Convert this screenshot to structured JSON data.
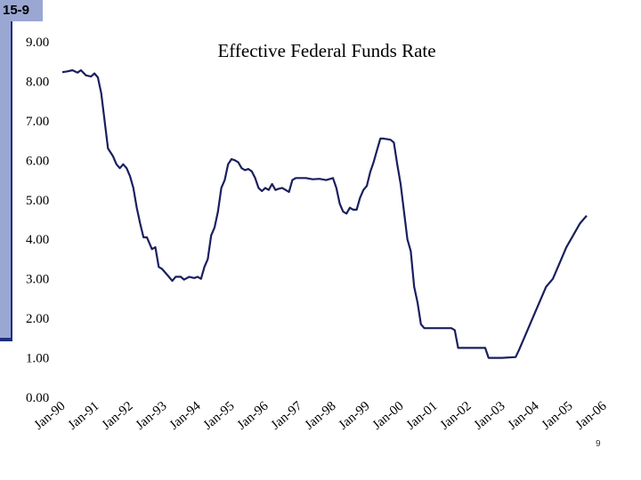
{
  "slide": {
    "tag": "15-9",
    "page_number": "9"
  },
  "colors": {
    "line": "#1a1f5e",
    "accent": "#9aa7d3",
    "accent_dark": "#1f2f7a"
  },
  "chart_data": {
    "type": "line",
    "title": "Effective Federal Funds Rate",
    "xlabel": "",
    "ylabel": "",
    "ylim": [
      0,
      9
    ],
    "y_ticks": [
      "0.00",
      "1.00",
      "2.00",
      "3.00",
      "4.00",
      "5.00",
      "6.00",
      "7.00",
      "8.00",
      "9.00"
    ],
    "x_ticks": [
      "Jan-90",
      "Jan-91",
      "Jan-92",
      "Jan-93",
      "Jan-94",
      "Jan-95",
      "Jan-96",
      "Jan-97",
      "Jan-98",
      "Jan-99",
      "Jan-00",
      "Jan-01",
      "Jan-02",
      "Jan-03",
      "Jan-04",
      "Jan-05",
      "Jan-06"
    ],
    "x_unit": "years since Jan-90",
    "xlim": [
      0,
      16.5
    ],
    "series": [
      {
        "name": "",
        "points": [
          [
            0.0,
            8.23
          ],
          [
            0.15,
            8.25
          ],
          [
            0.3,
            8.28
          ],
          [
            0.45,
            8.22
          ],
          [
            0.55,
            8.28
          ],
          [
            0.7,
            8.15
          ],
          [
            0.85,
            8.12
          ],
          [
            0.95,
            8.2
          ],
          [
            1.05,
            8.1
          ],
          [
            1.15,
            7.7
          ],
          [
            1.25,
            7.0
          ],
          [
            1.35,
            6.3
          ],
          [
            1.5,
            6.1
          ],
          [
            1.6,
            5.9
          ],
          [
            1.7,
            5.8
          ],
          [
            1.8,
            5.9
          ],
          [
            1.9,
            5.8
          ],
          [
            2.0,
            5.6
          ],
          [
            2.1,
            5.3
          ],
          [
            2.2,
            4.8
          ],
          [
            2.3,
            4.4
          ],
          [
            2.4,
            4.05
          ],
          [
            2.5,
            4.05
          ],
          [
            2.55,
            3.95
          ],
          [
            2.65,
            3.75
          ],
          [
            2.75,
            3.8
          ],
          [
            2.85,
            3.3
          ],
          [
            2.95,
            3.25
          ],
          [
            3.05,
            3.15
          ],
          [
            3.15,
            3.05
          ],
          [
            3.25,
            2.95
          ],
          [
            3.35,
            3.05
          ],
          [
            3.5,
            3.05
          ],
          [
            3.6,
            2.98
          ],
          [
            3.75,
            3.05
          ],
          [
            3.9,
            3.02
          ],
          [
            4.0,
            3.05
          ],
          [
            4.1,
            3.0
          ],
          [
            4.2,
            3.3
          ],
          [
            4.3,
            3.5
          ],
          [
            4.4,
            4.1
          ],
          [
            4.5,
            4.3
          ],
          [
            4.6,
            4.7
          ],
          [
            4.7,
            5.3
          ],
          [
            4.8,
            5.5
          ],
          [
            4.9,
            5.9
          ],
          [
            5.0,
            6.03
          ],
          [
            5.1,
            6.0
          ],
          [
            5.2,
            5.95
          ],
          [
            5.3,
            5.8
          ],
          [
            5.4,
            5.75
          ],
          [
            5.5,
            5.78
          ],
          [
            5.6,
            5.72
          ],
          [
            5.7,
            5.55
          ],
          [
            5.8,
            5.3
          ],
          [
            5.9,
            5.22
          ],
          [
            6.0,
            5.3
          ],
          [
            6.1,
            5.25
          ],
          [
            6.2,
            5.4
          ],
          [
            6.3,
            5.25
          ],
          [
            6.4,
            5.28
          ],
          [
            6.5,
            5.3
          ],
          [
            6.6,
            5.25
          ],
          [
            6.7,
            5.2
          ],
          [
            6.8,
            5.5
          ],
          [
            6.9,
            5.55
          ],
          [
            7.0,
            5.55
          ],
          [
            7.2,
            5.55
          ],
          [
            7.4,
            5.52
          ],
          [
            7.6,
            5.53
          ],
          [
            7.8,
            5.5
          ],
          [
            8.0,
            5.55
          ],
          [
            8.1,
            5.3
          ],
          [
            8.2,
            4.9
          ],
          [
            8.3,
            4.7
          ],
          [
            8.4,
            4.65
          ],
          [
            8.5,
            4.8
          ],
          [
            8.6,
            4.75
          ],
          [
            8.7,
            4.75
          ],
          [
            8.8,
            5.05
          ],
          [
            8.9,
            5.25
          ],
          [
            9.0,
            5.35
          ],
          [
            9.1,
            5.7
          ],
          [
            9.2,
            5.95
          ],
          [
            9.3,
            6.25
          ],
          [
            9.4,
            6.55
          ],
          [
            9.5,
            6.55
          ],
          [
            9.7,
            6.52
          ],
          [
            9.8,
            6.45
          ],
          [
            9.9,
            5.9
          ],
          [
            10.0,
            5.4
          ],
          [
            10.1,
            4.7
          ],
          [
            10.2,
            4.0
          ],
          [
            10.3,
            3.7
          ],
          [
            10.4,
            2.8
          ],
          [
            10.5,
            2.4
          ],
          [
            10.6,
            1.85
          ],
          [
            10.7,
            1.75
          ],
          [
            11.0,
            1.75
          ],
          [
            11.5,
            1.75
          ],
          [
            11.6,
            1.7
          ],
          [
            11.7,
            1.25
          ],
          [
            12.0,
            1.25
          ],
          [
            12.5,
            1.25
          ],
          [
            12.6,
            1.0
          ],
          [
            13.0,
            1.0
          ],
          [
            13.4,
            1.02
          ],
          [
            13.5,
            1.2
          ],
          [
            13.7,
            1.6
          ],
          [
            13.9,
            2.0
          ],
          [
            14.1,
            2.4
          ],
          [
            14.3,
            2.8
          ],
          [
            14.5,
            3.0
          ],
          [
            14.7,
            3.4
          ],
          [
            14.9,
            3.8
          ],
          [
            15.1,
            4.1
          ],
          [
            15.3,
            4.4
          ],
          [
            15.5,
            4.6
          ]
        ]
      }
    ]
  }
}
